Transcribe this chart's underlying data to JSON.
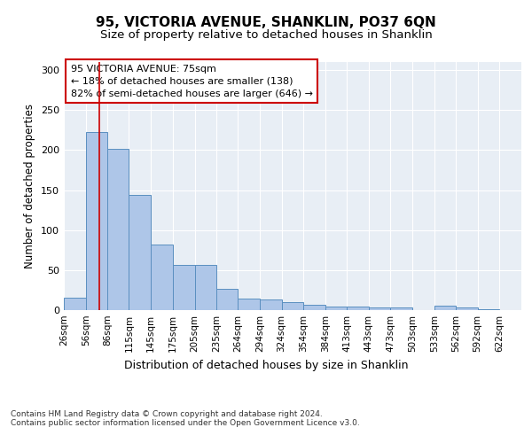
{
  "title_line1": "95, VICTORIA AVENUE, SHANKLIN, PO37 6QN",
  "title_line2": "Size of property relative to detached houses in Shanklin",
  "xlabel": "Distribution of detached houses by size in Shanklin",
  "ylabel": "Number of detached properties",
  "footer": "Contains HM Land Registry data © Crown copyright and database right 2024.\nContains public sector information licensed under the Open Government Licence v3.0.",
  "annotation_title": "95 VICTORIA AVENUE: 75sqm",
  "annotation_line2": "← 18% of detached houses are smaller (138)",
  "annotation_line3": "82% of semi-detached houses are larger (646) →",
  "property_size": 75,
  "bar_left_edges": [
    26,
    56,
    86,
    115,
    145,
    175,
    205,
    235,
    264,
    294,
    324,
    354,
    384,
    413,
    443,
    473,
    503,
    533,
    562,
    592
  ],
  "bar_widths": [
    30,
    30,
    29,
    30,
    30,
    30,
    30,
    29,
    30,
    30,
    30,
    30,
    29,
    30,
    30,
    30,
    30,
    29,
    30,
    30
  ],
  "bar_heights": [
    15,
    222,
    202,
    144,
    82,
    57,
    57,
    27,
    14,
    13,
    10,
    7,
    4,
    4,
    3,
    3,
    0,
    5,
    3,
    1
  ],
  "bar_color": "#aec6e8",
  "bar_edge_color": "#5a8fc0",
  "vline_x": 75,
  "vline_color": "#cc0000",
  "ylim": [
    0,
    310
  ],
  "yticks": [
    0,
    50,
    100,
    150,
    200,
    250,
    300
  ],
  "background_color": "#e8eef5",
  "grid_color": "#ffffff",
  "tick_labels": [
    "26sqm",
    "56sqm",
    "86sqm",
    "115sqm",
    "145sqm",
    "175sqm",
    "205sqm",
    "235sqm",
    "264sqm",
    "294sqm",
    "324sqm",
    "354sqm",
    "384sqm",
    "413sqm",
    "443sqm",
    "473sqm",
    "503sqm",
    "533sqm",
    "562sqm",
    "592sqm",
    "622sqm"
  ]
}
